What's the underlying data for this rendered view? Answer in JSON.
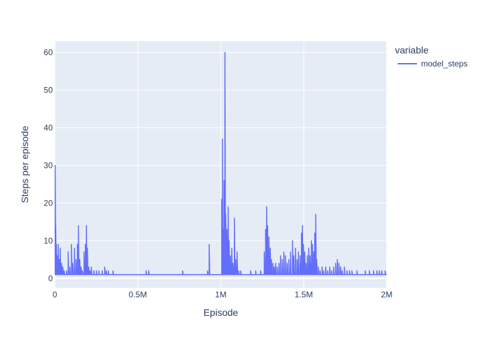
{
  "chart_data": {
    "type": "line",
    "xlabel": "Episode",
    "ylabel": "Steps per episode",
    "xlim": [
      0,
      2000000
    ],
    "ylim": [
      -2.5,
      63
    ],
    "x_ticks": [
      {
        "value": 0,
        "label": "0"
      },
      {
        "value": 500000,
        "label": "0.5M"
      },
      {
        "value": 1000000,
        "label": "1M"
      },
      {
        "value": 1500000,
        "label": "1.5M"
      },
      {
        "value": 2000000,
        "label": "2M"
      }
    ],
    "y_ticks": [
      {
        "value": 0,
        "label": "0"
      },
      {
        "value": 10,
        "label": "10"
      },
      {
        "value": 20,
        "label": "20"
      },
      {
        "value": 30,
        "label": "30"
      },
      {
        "value": 40,
        "label": "40"
      },
      {
        "value": 50,
        "label": "50"
      },
      {
        "value": 60,
        "label": "60"
      }
    ],
    "grid": true,
    "legend": {
      "title": "variable",
      "position": "right"
    },
    "series": [
      {
        "name": "model_steps",
        "color": "#636efa",
        "baseline": 1,
        "spikes": [
          [
            2000,
            30
          ],
          [
            5000,
            14
          ],
          [
            9000,
            9
          ],
          [
            15000,
            6
          ],
          [
            20000,
            9
          ],
          [
            26000,
            5
          ],
          [
            32000,
            8
          ],
          [
            40000,
            4
          ],
          [
            48000,
            3
          ],
          [
            56000,
            2
          ],
          [
            70000,
            2
          ],
          [
            80000,
            7
          ],
          [
            90000,
            3
          ],
          [
            100000,
            9
          ],
          [
            108000,
            4
          ],
          [
            118000,
            8
          ],
          [
            128000,
            5
          ],
          [
            136000,
            9
          ],
          [
            142000,
            14
          ],
          [
            150000,
            5
          ],
          [
            158000,
            3
          ],
          [
            166000,
            2
          ],
          [
            176000,
            7
          ],
          [
            184000,
            9
          ],
          [
            190000,
            14
          ],
          [
            196000,
            8
          ],
          [
            204000,
            3
          ],
          [
            212000,
            2
          ],
          [
            220000,
            3
          ],
          [
            235000,
            2
          ],
          [
            250000,
            2
          ],
          [
            265000,
            2
          ],
          [
            285000,
            2
          ],
          [
            300000,
            3
          ],
          [
            310000,
            2
          ],
          [
            322000,
            2
          ],
          [
            350000,
            2
          ],
          [
            550000,
            2
          ],
          [
            565000,
            2
          ],
          [
            770000,
            2
          ],
          [
            920000,
            2
          ],
          [
            930000,
            9
          ],
          [
            1005000,
            21
          ],
          [
            1010000,
            37
          ],
          [
            1015000,
            13
          ],
          [
            1020000,
            26
          ],
          [
            1025000,
            60
          ],
          [
            1030000,
            17
          ],
          [
            1037000,
            13
          ],
          [
            1044000,
            19
          ],
          [
            1050000,
            10
          ],
          [
            1058000,
            6
          ],
          [
            1066000,
            8
          ],
          [
            1074000,
            4
          ],
          [
            1082000,
            16
          ],
          [
            1090000,
            5
          ],
          [
            1098000,
            7
          ],
          [
            1108000,
            2
          ],
          [
            1120000,
            2
          ],
          [
            1180000,
            2
          ],
          [
            1210000,
            2
          ],
          [
            1240000,
            2
          ],
          [
            1262000,
            7
          ],
          [
            1270000,
            13
          ],
          [
            1276000,
            19
          ],
          [
            1282000,
            14
          ],
          [
            1290000,
            11
          ],
          [
            1298000,
            8
          ],
          [
            1305000,
            5
          ],
          [
            1314000,
            4
          ],
          [
            1322000,
            3
          ],
          [
            1330000,
            4
          ],
          [
            1340000,
            3
          ],
          [
            1350000,
            4
          ],
          [
            1360000,
            6
          ],
          [
            1370000,
            5
          ],
          [
            1380000,
            7
          ],
          [
            1390000,
            6
          ],
          [
            1400000,
            4
          ],
          [
            1410000,
            5
          ],
          [
            1420000,
            7
          ],
          [
            1432000,
            10
          ],
          [
            1440000,
            6
          ],
          [
            1450000,
            8
          ],
          [
            1460000,
            5
          ],
          [
            1468000,
            7
          ],
          [
            1478000,
            6
          ],
          [
            1486000,
            12
          ],
          [
            1492000,
            14
          ],
          [
            1498000,
            9
          ],
          [
            1506000,
            7
          ],
          [
            1514000,
            4
          ],
          [
            1522000,
            6
          ],
          [
            1530000,
            8
          ],
          [
            1538000,
            6
          ],
          [
            1546000,
            10
          ],
          [
            1552000,
            9
          ],
          [
            1560000,
            7
          ],
          [
            1566000,
            12
          ],
          [
            1572000,
            17
          ],
          [
            1578000,
            5
          ],
          [
            1588000,
            3
          ],
          [
            1598000,
            2
          ],
          [
            1610000,
            3
          ],
          [
            1620000,
            2
          ],
          [
            1632000,
            3
          ],
          [
            1644000,
            2
          ],
          [
            1656000,
            3
          ],
          [
            1668000,
            2
          ],
          [
            1680000,
            3
          ],
          [
            1692000,
            4
          ],
          [
            1702000,
            5
          ],
          [
            1712000,
            4
          ],
          [
            1722000,
            3
          ],
          [
            1732000,
            2
          ],
          [
            1745000,
            3
          ],
          [
            1760000,
            2
          ],
          [
            1775000,
            2
          ],
          [
            1790000,
            2
          ],
          [
            1820000,
            2
          ],
          [
            1870000,
            2
          ],
          [
            1895000,
            2
          ],
          [
            1920000,
            2
          ],
          [
            1940000,
            2
          ],
          [
            1955000,
            2
          ],
          [
            1970000,
            2
          ],
          [
            1990000,
            2
          ]
        ]
      }
    ]
  }
}
